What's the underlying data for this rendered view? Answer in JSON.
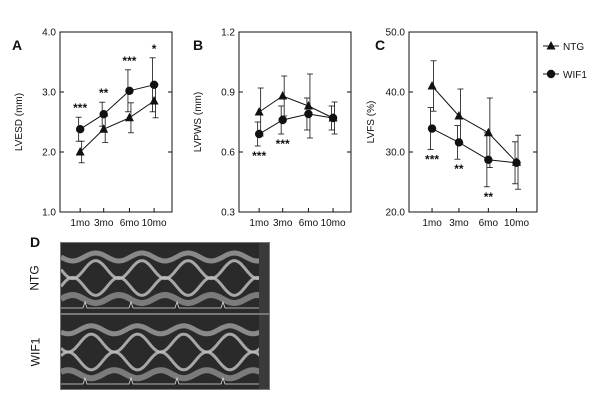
{
  "chart_data": [
    {
      "type": "line",
      "panel_label": "A",
      "ylabel": "LVESD (mm)",
      "xlabel": "",
      "categories": [
        "1mo",
        "3mo",
        "6mo",
        "10mo"
      ],
      "ylim": [
        1.0,
        4.0
      ],
      "yticks": [
        "1.0",
        "2.0",
        "3.0",
        "4.0"
      ],
      "series": [
        {
          "name": "NTG",
          "marker": "triangle",
          "values": [
            2.0,
            2.38,
            2.57,
            2.85
          ],
          "err": [
            0.18,
            0.22,
            0.25,
            0.28
          ]
        },
        {
          "name": "WIF1",
          "marker": "circle",
          "values": [
            2.38,
            2.63,
            3.02,
            3.12
          ],
          "err": [
            0.2,
            0.2,
            0.35,
            0.45
          ]
        }
      ],
      "significance": [
        "***",
        "**",
        "***",
        "*"
      ],
      "significance_pos": "above",
      "legend": false
    },
    {
      "type": "line",
      "panel_label": "B",
      "ylabel": "LVPWS (mm)",
      "xlabel": "",
      "categories": [
        "1mo",
        "3mo",
        "6mo",
        "10mo"
      ],
      "ylim": [
        0.3,
        1.2
      ],
      "yticks": [
        "0.3",
        "0.6",
        "0.9",
        "1.2"
      ],
      "series": [
        {
          "name": "NTG",
          "marker": "triangle",
          "values": [
            0.8,
            0.88,
            0.83,
            0.77
          ],
          "err": [
            0.12,
            0.1,
            0.16,
            0.08
          ]
        },
        {
          "name": "WIF1",
          "marker": "circle",
          "values": [
            0.69,
            0.76,
            0.79,
            0.77
          ],
          "err": [
            0.06,
            0.07,
            0.08,
            0.06
          ]
        }
      ],
      "significance": [
        "***",
        "***",
        "",
        ""
      ],
      "significance_pos": "below",
      "legend": false
    },
    {
      "type": "line",
      "panel_label": "C",
      "ylabel": "LVFS (%)",
      "xlabel": "",
      "categories": [
        "1mo",
        "3mo",
        "6mo",
        "10mo"
      ],
      "ylim": [
        20.0,
        50.0
      ],
      "yticks": [
        "20.0",
        "30.0",
        "40.0",
        "50.0"
      ],
      "series": [
        {
          "name": "NTG",
          "marker": "triangle",
          "values": [
            41.0,
            36.0,
            33.2,
            28.3
          ],
          "err": [
            4.2,
            4.5,
            5.8,
            4.5
          ]
        },
        {
          "name": "WIF1",
          "marker": "circle",
          "values": [
            33.9,
            31.6,
            28.7,
            28.2
          ],
          "err": [
            3.5,
            2.8,
            4.5,
            3.5
          ]
        }
      ],
      "significance": [
        "***",
        "**",
        "**",
        ""
      ],
      "significance_pos": "below",
      "legend": true,
      "legend_position": "right"
    }
  ],
  "panel_d": {
    "label": "D",
    "rows": [
      {
        "name": "NTG"
      },
      {
        "name": "WIF1"
      }
    ]
  },
  "colors": {
    "line": "#111111",
    "axis": "#111111",
    "ultrasound_bg": "#2a2a2a",
    "ecg": "#dddddd"
  }
}
